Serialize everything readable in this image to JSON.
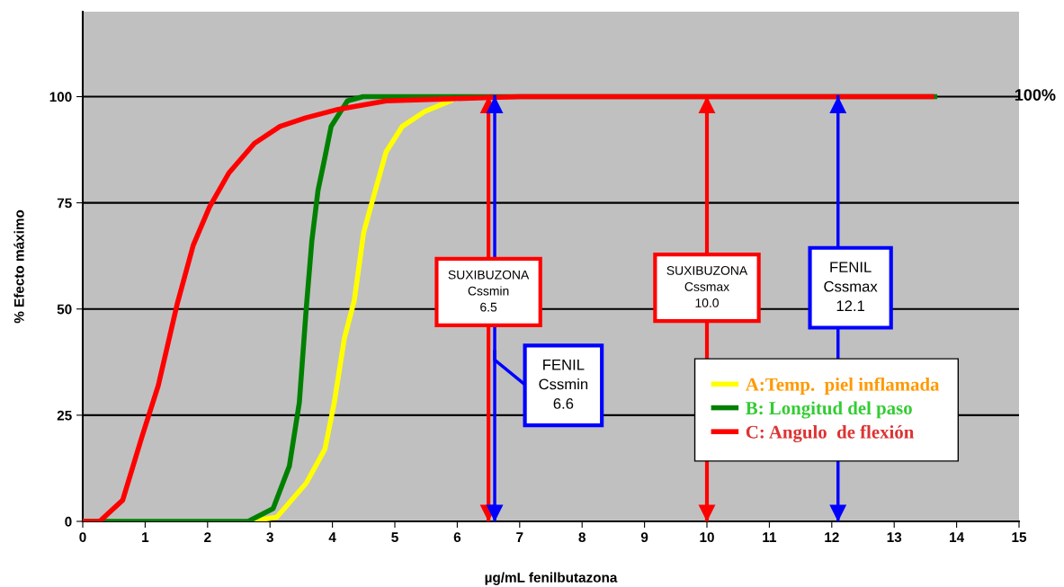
{
  "chart_data": {
    "type": "line",
    "xlabel": "µg/mL fenilbutazona",
    "ylabel": "% Efecto máximo",
    "xlim": [
      0,
      15
    ],
    "xticks": [
      0,
      1,
      2,
      3,
      4,
      5,
      6,
      7,
      8,
      9,
      10,
      11,
      12,
      13,
      14,
      15
    ],
    "ylim": [
      0,
      120
    ],
    "yticks": [
      0,
      25,
      50,
      75,
      100
    ],
    "grid": "y",
    "legend": "bottom right",
    "marker": "none",
    "line_style": "solid",
    "series": [
      {
        "name": "A:Temp.  piel inflamada",
        "color": "#ffff00",
        "x": [
          2.7,
          3.11,
          3.58,
          3.88,
          4.03,
          4.19,
          4.35,
          4.5,
          4.65,
          4.86,
          5.12,
          5.48,
          5.89
        ],
        "values": [
          0,
          1,
          9,
          17,
          28,
          43,
          52,
          68,
          76,
          87,
          93,
          96.5,
          99
        ]
      },
      {
        "name": "B: Longitud del paso",
        "color": "#008000",
        "x": [
          0,
          2.65,
          3.05,
          3.31,
          3.47,
          3.58,
          3.67,
          3.77,
          3.87,
          3.98,
          4.24,
          4.49,
          13.65
        ],
        "values": [
          0,
          0,
          3,
          13,
          28,
          50,
          66,
          78,
          85,
          93,
          99,
          100,
          100
        ]
      },
      {
        "name": "C: Angulo  de flexión",
        "color": "#ff0000",
        "x": [
          0,
          0.27,
          0.64,
          0.95,
          1.21,
          1.51,
          1.77,
          2.03,
          2.34,
          2.75,
          3.16,
          3.57,
          4.09,
          4.86,
          5.88,
          7.0,
          13.6
        ],
        "values": [
          0,
          0,
          5,
          20,
          32,
          51,
          65,
          74,
          82,
          89,
          93,
          95,
          97,
          99,
          99.5,
          100,
          100
        ]
      }
    ],
    "ref_lines": [
      {
        "axis": "x",
        "value": 6.5,
        "label": "SUXIBUZONA\nCssmin\n6.5",
        "color": "#ff0000"
      },
      {
        "axis": "x",
        "value": 6.6,
        "label": "FENIL\nCssmin\n6.6",
        "color": "#0000ff"
      },
      {
        "axis": "x",
        "value": 10.0,
        "label": "SUXIBUZONA\nCssmax\n10.0",
        "color": "#ff0000"
      },
      {
        "axis": "x",
        "value": 12.1,
        "label": "FENIL\nCssmax\n12.1",
        "color": "#0000ff"
      }
    ],
    "annotations": [
      "100%"
    ]
  }
}
